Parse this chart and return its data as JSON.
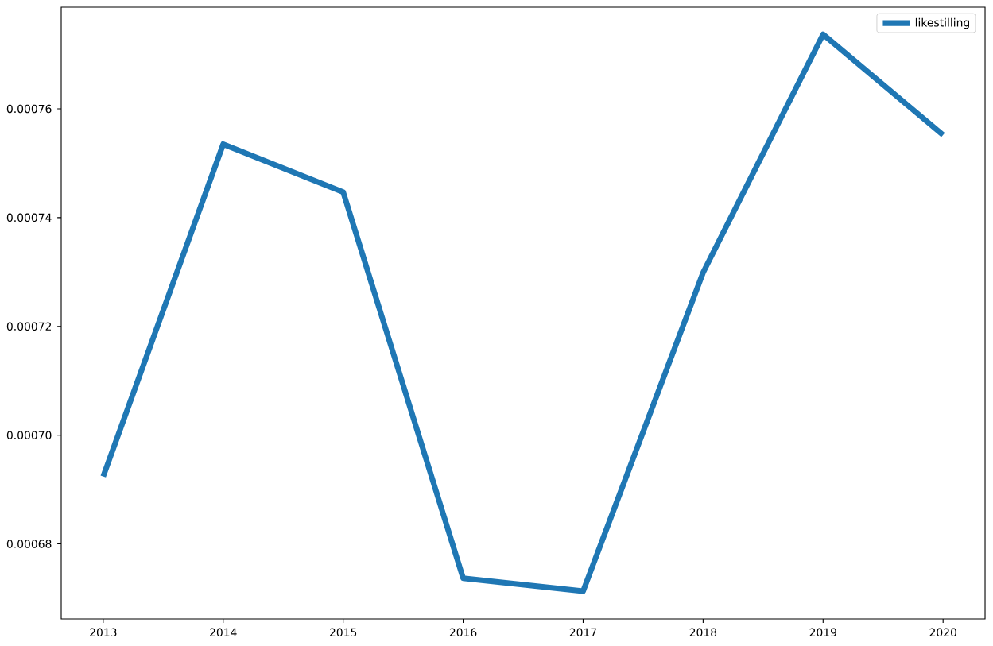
{
  "chart_data": {
    "type": "line",
    "x": [
      2013,
      2014,
      2015,
      2016,
      2017,
      2018,
      2019,
      2020
    ],
    "series": [
      {
        "name": "likestilling",
        "color": "#1f77b4",
        "values": [
          0.0006924,
          0.0007535,
          0.0007447,
          0.0006737,
          0.0006713,
          0.0007299,
          0.0007737,
          0.0007552
        ]
      }
    ],
    "xlim": [
      2012.65,
      2020.35
    ],
    "xticks": [
      2013,
      2014,
      2015,
      2016,
      2017,
      2018,
      2019,
      2020
    ],
    "ylim": [
      0.0006662,
      0.0007787
    ],
    "yticks": [
      0.00068,
      {
        "value": 0.0007,
        "label": "0.00070"
      },
      0.00072,
      0.00074,
      0.00076
    ],
    "legend": "top right",
    "grid": false
  }
}
